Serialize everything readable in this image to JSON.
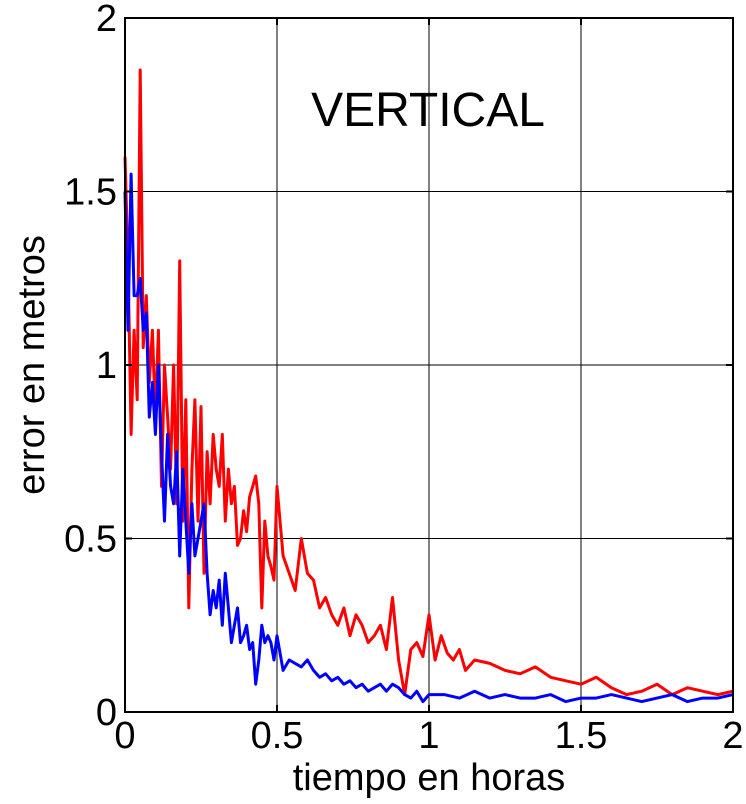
{
  "chart_data": {
    "type": "line",
    "xlabel": "tiempo en horas",
    "ylabel": "error en metros",
    "annotation": "VERTICAL",
    "xlim": [
      0,
      2
    ],
    "ylim": [
      0,
      2
    ],
    "xticks": [
      "0",
      "0.5",
      "1",
      "1.5",
      "2"
    ],
    "yticks": [
      "0",
      "0.5",
      "1",
      "1.5",
      "2"
    ],
    "grid": true,
    "series": [
      {
        "color": "#ff0000",
        "x": [
          0,
          0.01,
          0.02,
          0.03,
          0.04,
          0.05,
          0.06,
          0.07,
          0.08,
          0.09,
          0.1,
          0.11,
          0.12,
          0.13,
          0.14,
          0.15,
          0.16,
          0.17,
          0.18,
          0.19,
          0.2,
          0.21,
          0.22,
          0.23,
          0.24,
          0.25,
          0.26,
          0.27,
          0.28,
          0.29,
          0.3,
          0.31,
          0.32,
          0.33,
          0.34,
          0.35,
          0.36,
          0.37,
          0.38,
          0.39,
          0.4,
          0.41,
          0.42,
          0.43,
          0.44,
          0.45,
          0.46,
          0.47,
          0.48,
          0.49,
          0.5,
          0.52,
          0.54,
          0.56,
          0.58,
          0.6,
          0.62,
          0.64,
          0.66,
          0.68,
          0.7,
          0.72,
          0.74,
          0.76,
          0.78,
          0.8,
          0.82,
          0.84,
          0.86,
          0.88,
          0.9,
          0.92,
          0.94,
          0.96,
          0.98,
          1.0,
          1.02,
          1.04,
          1.06,
          1.08,
          1.1,
          1.12,
          1.15,
          1.2,
          1.25,
          1.3,
          1.35,
          1.4,
          1.45,
          1.5,
          1.55,
          1.6,
          1.65,
          1.7,
          1.75,
          1.8,
          1.85,
          1.9,
          1.95,
          2.0
        ],
        "y": [
          1.6,
          1.3,
          0.8,
          1.1,
          0.9,
          1.85,
          1.05,
          1.2,
          0.95,
          1.1,
          0.85,
          1.1,
          0.65,
          1.0,
          0.85,
          0.7,
          1.0,
          0.6,
          1.3,
          0.55,
          0.9,
          0.3,
          0.7,
          0.9,
          0.55,
          0.88,
          0.4,
          0.75,
          0.6,
          0.8,
          0.7,
          0.65,
          0.8,
          0.55,
          0.7,
          0.6,
          0.65,
          0.48,
          0.5,
          0.58,
          0.52,
          0.62,
          0.65,
          0.68,
          0.6,
          0.3,
          0.55,
          0.45,
          0.42,
          0.38,
          0.65,
          0.45,
          0.4,
          0.35,
          0.5,
          0.4,
          0.38,
          0.3,
          0.33,
          0.28,
          0.25,
          0.3,
          0.22,
          0.28,
          0.25,
          0.2,
          0.22,
          0.25,
          0.18,
          0.33,
          0.15,
          0.05,
          0.18,
          0.2,
          0.16,
          0.28,
          0.15,
          0.22,
          0.17,
          0.15,
          0.18,
          0.12,
          0.15,
          0.14,
          0.12,
          0.11,
          0.13,
          0.1,
          0.09,
          0.08,
          0.1,
          0.07,
          0.05,
          0.06,
          0.08,
          0.05,
          0.07,
          0.06,
          0.05,
          0.06
        ]
      },
      {
        "color": "#0000ff",
        "x": [
          0,
          0.01,
          0.02,
          0.03,
          0.04,
          0.05,
          0.06,
          0.07,
          0.08,
          0.09,
          0.1,
          0.11,
          0.12,
          0.13,
          0.14,
          0.15,
          0.16,
          0.17,
          0.18,
          0.19,
          0.2,
          0.21,
          0.22,
          0.23,
          0.24,
          0.25,
          0.26,
          0.27,
          0.28,
          0.29,
          0.3,
          0.31,
          0.32,
          0.33,
          0.34,
          0.35,
          0.36,
          0.37,
          0.38,
          0.39,
          0.4,
          0.41,
          0.42,
          0.43,
          0.44,
          0.45,
          0.46,
          0.47,
          0.48,
          0.49,
          0.5,
          0.52,
          0.54,
          0.56,
          0.58,
          0.6,
          0.62,
          0.64,
          0.66,
          0.68,
          0.7,
          0.72,
          0.74,
          0.76,
          0.78,
          0.8,
          0.82,
          0.84,
          0.86,
          0.88,
          0.9,
          0.92,
          0.94,
          0.96,
          0.98,
          1.0,
          1.05,
          1.1,
          1.15,
          1.2,
          1.25,
          1.3,
          1.35,
          1.4,
          1.45,
          1.5,
          1.55,
          1.6,
          1.65,
          1.7,
          1.75,
          1.8,
          1.85,
          1.9,
          1.95,
          2.0
        ],
        "y": [
          1.5,
          1.1,
          1.55,
          1.2,
          1.2,
          1.25,
          1.1,
          1.15,
          0.85,
          0.95,
          0.8,
          1.0,
          0.75,
          0.55,
          0.8,
          0.65,
          0.6,
          0.75,
          0.45,
          0.7,
          0.55,
          0.4,
          0.6,
          0.45,
          0.5,
          0.55,
          0.6,
          0.4,
          0.28,
          0.35,
          0.3,
          0.38,
          0.25,
          0.4,
          0.3,
          0.2,
          0.25,
          0.3,
          0.2,
          0.22,
          0.25,
          0.18,
          0.2,
          0.08,
          0.15,
          0.25,
          0.2,
          0.22,
          0.2,
          0.15,
          0.22,
          0.12,
          0.15,
          0.14,
          0.13,
          0.15,
          0.12,
          0.1,
          0.11,
          0.09,
          0.1,
          0.08,
          0.09,
          0.07,
          0.08,
          0.06,
          0.07,
          0.08,
          0.06,
          0.08,
          0.07,
          0.05,
          0.04,
          0.06,
          0.03,
          0.05,
          0.05,
          0.04,
          0.06,
          0.04,
          0.05,
          0.04,
          0.04,
          0.05,
          0.03,
          0.04,
          0.04,
          0.05,
          0.04,
          0.03,
          0.04,
          0.05,
          0.03,
          0.04,
          0.04,
          0.05
        ]
      }
    ]
  }
}
